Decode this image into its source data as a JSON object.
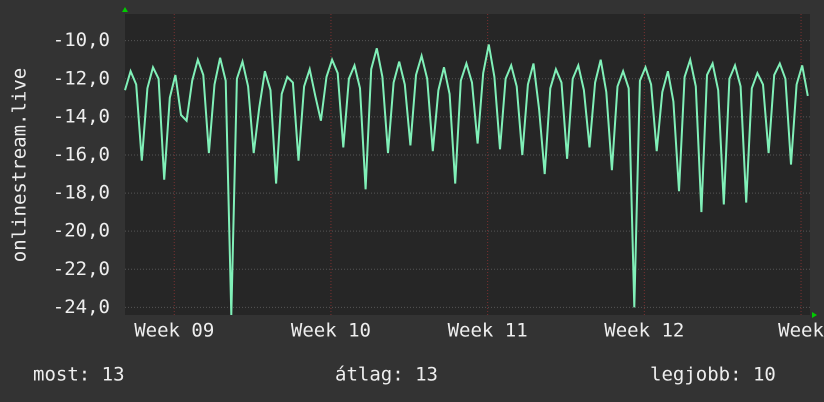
{
  "chart_data": {
    "type": "line",
    "y_label": "onlinestream.live",
    "x": [
      0,
      0.25,
      0.5,
      0.75,
      1,
      1.25,
      1.5,
      1.75,
      2,
      2.25,
      2.5,
      2.75,
      3,
      3.25,
      3.5,
      3.75,
      4,
      4.25,
      4.5,
      4.75,
      5,
      5.25,
      5.5,
      5.75,
      6,
      6.25,
      6.5,
      6.75,
      7,
      7.25,
      7.5,
      7.75,
      8,
      8.25,
      8.5,
      8.75,
      9,
      9.25,
      9.5,
      9.75,
      10,
      10.25,
      10.5,
      10.75,
      11,
      11.25,
      11.5,
      11.75,
      12,
      12.25,
      12.5,
      12.75,
      13,
      13.25,
      13.5,
      13.75,
      14,
      14.25,
      14.5,
      14.75,
      15,
      15.25,
      15.5,
      15.75,
      16,
      16.25,
      16.5,
      16.75,
      17,
      17.25,
      17.5,
      17.75,
      18,
      18.25,
      18.5,
      18.75,
      19,
      19.25,
      19.5,
      19.75,
      20,
      20.25,
      20.5,
      20.75,
      21,
      21.25,
      21.5,
      21.75,
      22,
      22.25,
      22.5,
      22.75,
      23,
      23.25,
      23.5,
      23.75,
      24,
      24.25,
      24.5,
      24.75,
      25,
      25.25,
      25.5,
      25.75,
      26,
      26.25,
      26.5,
      26.75,
      27,
      27.25,
      27.5,
      27.75,
      28,
      28.25,
      28.5,
      28.75,
      29,
      29.25,
      29.5,
      29.75,
      30,
      30.25,
      30.5
    ],
    "series": [
      {
        "color": "#80f0b8",
        "values": [
          -12.6,
          -11.6,
          -12.3,
          -16.3,
          -12.5,
          -11.4,
          -12.0,
          -17.3,
          -13.0,
          -11.8,
          -13.9,
          -14.2,
          -12.1,
          -11.0,
          -11.8,
          -15.9,
          -12.3,
          -10.9,
          -12.1,
          -24.4,
          -12.0,
          -11.1,
          -12.4,
          -15.9,
          -13.5,
          -11.6,
          -12.6,
          -17.5,
          -12.8,
          -11.9,
          -12.2,
          -16.3,
          -12.4,
          -11.5,
          -12.9,
          -14.2,
          -11.9,
          -11.0,
          -11.7,
          -15.6,
          -12.0,
          -11.3,
          -12.5,
          -17.8,
          -11.5,
          -10.4,
          -11.9,
          -15.9,
          -12.2,
          -11.1,
          -12.3,
          -15.5,
          -11.8,
          -10.8,
          -12.0,
          -15.8,
          -12.6,
          -11.4,
          -12.8,
          -17.5,
          -12.1,
          -11.2,
          -12.2,
          -15.4,
          -11.7,
          -10.2,
          -11.9,
          -15.7,
          -12.0,
          -11.3,
          -12.4,
          -16.0,
          -12.3,
          -11.2,
          -13.6,
          -17.0,
          -12.5,
          -11.5,
          -12.2,
          -16.2,
          -12.0,
          -11.3,
          -12.6,
          -15.6,
          -12.2,
          -11.0,
          -12.7,
          -16.8,
          -12.4,
          -11.6,
          -12.5,
          -24.0,
          -12.1,
          -11.4,
          -12.3,
          -15.8,
          -12.7,
          -11.6,
          -13.2,
          -17.9,
          -11.9,
          -11.0,
          -12.4,
          -19.0,
          -11.8,
          -11.2,
          -12.6,
          -18.6,
          -12.0,
          -11.3,
          -12.4,
          -18.5,
          -12.5,
          -11.7,
          -12.3,
          -15.9,
          -11.8,
          -11.2,
          -12.0,
          -16.5,
          -12.3,
          -11.3,
          -12.9
        ]
      }
    ],
    "xlim": [
      0,
      30.6
    ],
    "xticks": [
      {
        "value": 2.2,
        "label": "Week 09"
      },
      {
        "value": 9.2,
        "label": "Week 10"
      },
      {
        "value": 16.2,
        "label": "Week 11"
      },
      {
        "value": 23.2,
        "label": "Week 12"
      },
      {
        "value": 30.2,
        "label": "Week"
      }
    ],
    "ylim": [
      -24.4,
      -8.6
    ],
    "yticks": [
      {
        "value": -10,
        "label": "-10,0"
      },
      {
        "value": -12,
        "label": "-12,0"
      },
      {
        "value": -14,
        "label": "-14,0"
      },
      {
        "value": -16,
        "label": "-16,0"
      },
      {
        "value": -18,
        "label": "-18,0"
      },
      {
        "value": -20,
        "label": "-20,0"
      },
      {
        "value": -22,
        "label": "-22,0"
      },
      {
        "value": -24,
        "label": "-24,0"
      }
    ],
    "grid": true,
    "footer": [
      "most: 13",
      "átlag: 13",
      "legjobb: 10"
    ]
  }
}
